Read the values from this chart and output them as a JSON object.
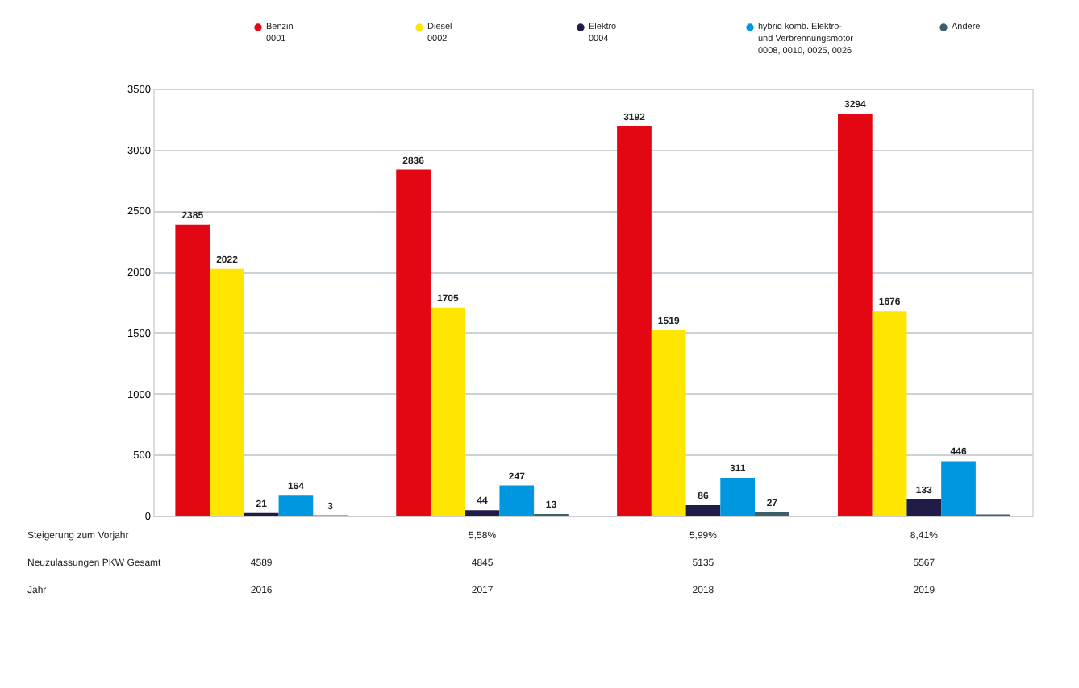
{
  "chart_data": {
    "type": "bar",
    "categories": [
      "2016",
      "2017",
      "2018",
      "2019"
    ],
    "series": [
      {
        "name": "Benzin\n0001",
        "color": "#e30613",
        "values": [
          2385,
          2836,
          3192,
          3294
        ],
        "value_labels": [
          "2385",
          "2836",
          "3192",
          "3294"
        ]
      },
      {
        "name": "Diesel\n0002",
        "color": "#ffe600",
        "values": [
          2022,
          1705,
          1519,
          1676
        ],
        "value_labels": [
          "2022",
          "1705",
          "1519",
          "1676"
        ]
      },
      {
        "name": "Elektro\n0004",
        "color": "#1f1d47",
        "values": [
          21,
          44,
          86,
          133
        ],
        "value_labels": [
          "21",
          "44",
          "86",
          "133"
        ]
      },
      {
        "name": "hybrid komb. Elektro-\nund Verbrennungsmotor\n0008, 0010, 0025, 0026",
        "color": "#0096e0",
        "values": [
          164,
          247,
          311,
          446
        ],
        "value_labels": [
          "164",
          "247",
          "311",
          "446"
        ]
      },
      {
        "name": "Andere",
        "color": "#3d5f6b",
        "values": [
          3,
          13,
          27,
          10
        ],
        "value_labels": [
          "3",
          "13",
          "27",
          null
        ]
      }
    ],
    "ylim": [
      0,
      3500
    ],
    "yticks": [
      0,
      500,
      1000,
      1500,
      2000,
      2500,
      3000,
      3500
    ],
    "grid": "y",
    "legend": "top",
    "annotations": [
      "Steigerung zum Vorjahr",
      "5,58%",
      "5,99%",
      "8,41%",
      "Neuzulassungen PKW Gesamt",
      "4589",
      "4845",
      "5135",
      "5567",
      "Jahr"
    ]
  }
}
